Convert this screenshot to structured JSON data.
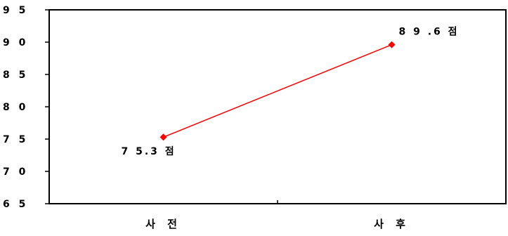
{
  "chart_data": {
    "type": "line",
    "categories": [
      "사 전",
      "사 후"
    ],
    "series": [
      {
        "values": [
          75.3,
          89.6
        ],
        "data_labels": [
          "7 5.3 점",
          "8 9 .6 점"
        ],
        "color": "#ff0000"
      }
    ],
    "y_ticks": [
      {
        "value": 65,
        "label": "6 5"
      },
      {
        "value": 70,
        "label": "7 0"
      },
      {
        "value": 75,
        "label": "7 5"
      },
      {
        "value": 80,
        "label": "8 0"
      },
      {
        "value": 85,
        "label": "8 5"
      },
      {
        "value": 90,
        "label": "9 0"
      },
      {
        "value": 95,
        "label": "9 5"
      }
    ],
    "ylim": [
      65,
      95
    ],
    "title": "",
    "xlabel": "",
    "ylabel": "",
    "grid": false,
    "legend": "none"
  }
}
